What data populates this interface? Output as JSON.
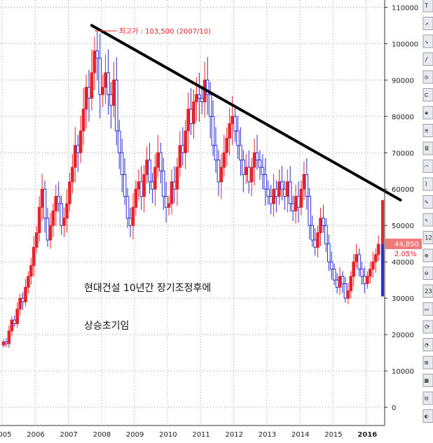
{
  "chart_data": {
    "type": "candlestick",
    "title": "",
    "xlabel": "",
    "ylabel": "",
    "ylim": [
      -5000,
      112000
    ],
    "y_ticks": [
      0,
      10000,
      20000,
      30000,
      40000,
      50000,
      60000,
      70000,
      80000,
      90000,
      100000,
      110000
    ],
    "y_tick_labels": [
      "0",
      "10000",
      "20000",
      "30000",
      "40000",
      "50000",
      "60000",
      "70000",
      "80000",
      "90000",
      "100000",
      "110000"
    ],
    "x_labels": [
      {
        "label": "2005",
        "pos": 0,
        "bold": false
      },
      {
        "label": "2006",
        "pos": 12,
        "bold": false
      },
      {
        "label": "2007",
        "pos": 24,
        "bold": false
      },
      {
        "label": "2008",
        "pos": 36,
        "bold": false
      },
      {
        "label": "2009",
        "pos": 48,
        "bold": false
      },
      {
        "label": "2010",
        "pos": 60,
        "bold": false
      },
      {
        "label": "2011",
        "pos": 72,
        "bold": false
      },
      {
        "label": "2012",
        "pos": 84,
        "bold": false
      },
      {
        "label": "2013",
        "pos": 96,
        "bold": false
      },
      {
        "label": "2014",
        "pos": 108,
        "bold": false
      },
      {
        "label": "2015",
        "pos": 120,
        "bold": false
      },
      {
        "label": "2016",
        "pos": 132,
        "bold": true
      }
    ],
    "closes": [
      18000,
      17500,
      21000,
      24000,
      23000,
      27000,
      30000,
      29000,
      33000,
      36000,
      39000,
      44000,
      48000,
      55000,
      60000,
      52000,
      46000,
      50000,
      54000,
      58000,
      56000,
      50000,
      52000,
      56000,
      62000,
      66000,
      72000,
      70000,
      76000,
      82000,
      88000,
      85000,
      92000,
      98000,
      96000,
      86000,
      88000,
      92000,
      86000,
      83000,
      90000,
      76000,
      70000,
      64000,
      58000,
      52000,
      50000,
      55000,
      60000,
      62000,
      58000,
      64000,
      68000,
      62000,
      60000,
      66000,
      70000,
      65000,
      58000,
      55000,
      56000,
      62000,
      60000,
      66000,
      72000,
      70000,
      76000,
      82000,
      78000,
      84000,
      86000,
      85000,
      84000,
      90000,
      86000,
      80000,
      72000,
      68000,
      62000,
      66000,
      70000,
      74000,
      78000,
      80000,
      76000,
      72000,
      68000,
      64000,
      66000,
      62000,
      66000,
      70000,
      68000,
      66000,
      64000,
      60000,
      58000,
      56000,
      60000,
      58000,
      62000,
      60000,
      58000,
      62000,
      56000,
      54000,
      58000,
      55000,
      60000,
      64000,
      58000,
      50000,
      46000,
      44000,
      48000,
      52000,
      50000,
      45000,
      40000,
      38000,
      35000,
      33000,
      36000,
      34000,
      30000,
      32000,
      36000,
      40000,
      42000,
      38000,
      36000,
      34000,
      36000,
      38000,
      40000,
      42000,
      44850
    ],
    "series": [],
    "annotations": {
      "high": {
        "label": "최고가 : 103,500 (2007/10)",
        "value": 103500,
        "pos": 33
      },
      "trendline": {
        "from": {
          "pos": 32,
          "value": 105000
        },
        "to": {
          "pos": 144,
          "value": 57000
        }
      },
      "text1": "현대건설 10년간 장기조정후에",
      "text2": "상승초기임"
    },
    "current_price": "44,850",
    "current_change": "2.05%"
  },
  "toolbar": {
    "items": [
      "T",
      "↗",
      "↘",
      "∕",
      "◎",
      "⊏",
      "◈",
      "≡",
      "Ⅲ",
      "⌒",
      "⌇",
      "✎",
      "↖",
      "12",
      "⊕",
      "⊖",
      "23",
      "▭",
      "⟳",
      "◔",
      "⊞",
      "▦",
      "⊟",
      "◐"
    ]
  },
  "colors": {
    "up": "#e8242b",
    "down": "#2b2fd1",
    "trendline": "#000000",
    "grid": "#9aa0a6",
    "price_box": "#f07a7a"
  }
}
